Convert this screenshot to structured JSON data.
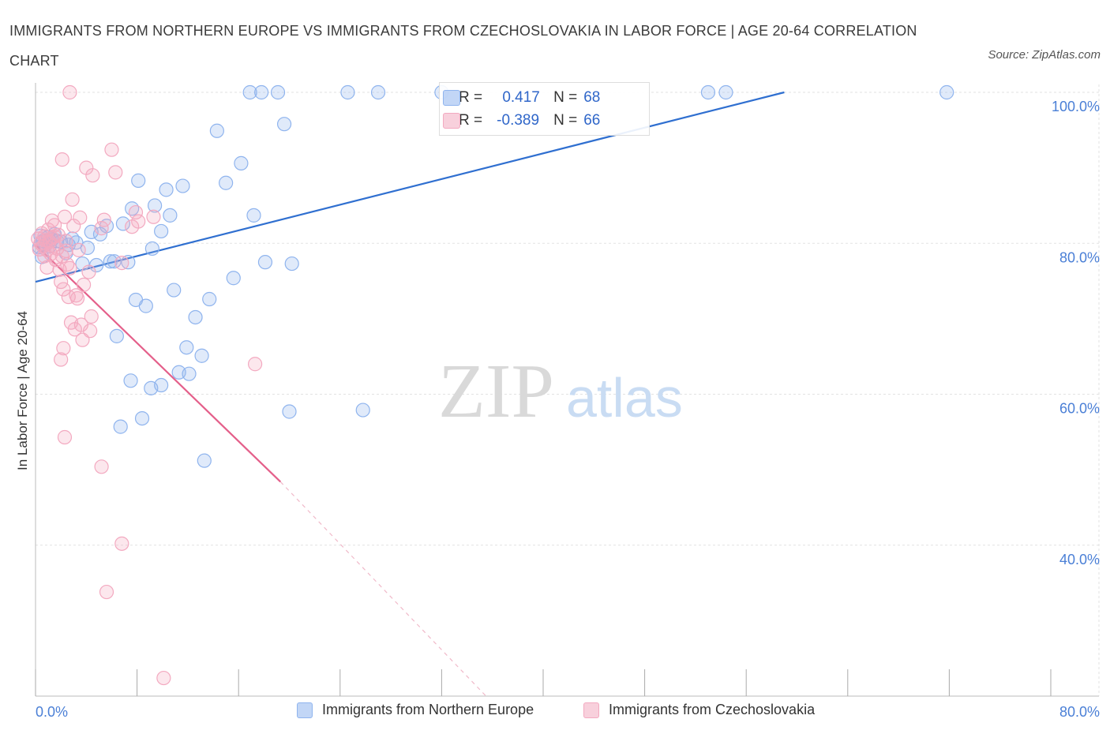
{
  "title": "IMMIGRANTS FROM NORTHERN EUROPE VS IMMIGRANTS FROM CZECHOSLOVAKIA IN LABOR FORCE | AGE 20-64 CORRELATION CHART",
  "source": "Source: ZipAtlas.com",
  "watermark": {
    "zip": "ZIP",
    "atlas": "atlas"
  },
  "stats": [
    {
      "r_label": "R =",
      "r_value": "0.417",
      "n_label": "N =",
      "n_value": "68",
      "color": "#8fb4ee"
    },
    {
      "r_label": "R =",
      "r_value": "-0.389",
      "n_label": "N =",
      "n_value": "66",
      "color": "#f3a9c0"
    }
  ],
  "legend": [
    {
      "label": "Immigrants from Northern Europe",
      "color": "#8fb4ee"
    },
    {
      "label": "Immigrants from Czechoslovakia",
      "color": "#f3a9c0"
    }
  ],
  "chart_data": {
    "type": "scatter",
    "title": "IMMIGRANTS FROM NORTHERN EUROPE VS IMMIGRANTS FROM CZECHOSLOVAKIA IN LABOR FORCE | AGE 20-64 CORRELATION CHART",
    "xlabel": "",
    "ylabel": "In Labor Force | Age 20-64",
    "xlim": [
      0,
      80
    ],
    "ylim": [
      20,
      100
    ],
    "x_tick_labels": [
      "0.0%",
      "80.0%"
    ],
    "y_tick_labels": [
      {
        "value": 100,
        "label": "100.0%"
      },
      {
        "value": 80,
        "label": "80.0%"
      },
      {
        "value": 60,
        "label": "60.0%"
      },
      {
        "value": 40,
        "label": "40.0%"
      }
    ],
    "series": [
      {
        "name": "Immigrants from Northern Europe",
        "color": "#8fb4ee",
        "trend": {
          "x0": 0,
          "y0": 74.9,
          "x1": 59,
          "y1": 100,
          "dashed_to": null
        },
        "points": [
          [
            0.3,
            79.5
          ],
          [
            0.4,
            81.0
          ],
          [
            0.6,
            80.3
          ],
          [
            0.5,
            78.2
          ],
          [
            0.8,
            79.8
          ],
          [
            1.0,
            80.8
          ],
          [
            1.3,
            80.5
          ],
          [
            1.5,
            81.2
          ],
          [
            1.1,
            79.6
          ],
          [
            1.7,
            80.3
          ],
          [
            2.0,
            80.2
          ],
          [
            2.6,
            79.8
          ],
          [
            2.4,
            78.7
          ],
          [
            2.9,
            80.6
          ],
          [
            3.2,
            80.1
          ],
          [
            3.7,
            77.3
          ],
          [
            4.1,
            79.4
          ],
          [
            4.4,
            81.5
          ],
          [
            4.8,
            77.1
          ],
          [
            5.1,
            81.2
          ],
          [
            5.6,
            82.3
          ],
          [
            5.9,
            77.6
          ],
          [
            6.2,
            77.6
          ],
          [
            6.9,
            82.6
          ],
          [
            7.3,
            77.5
          ],
          [
            7.6,
            84.6
          ],
          [
            7.9,
            72.5
          ],
          [
            8.1,
            88.3
          ],
          [
            8.7,
            71.7
          ],
          [
            9.2,
            79.3
          ],
          [
            9.4,
            85.0
          ],
          [
            9.9,
            81.6
          ],
          [
            10.3,
            87.1
          ],
          [
            10.6,
            83.7
          ],
          [
            11.6,
            87.6
          ],
          [
            11.9,
            66.2
          ],
          [
            12.1,
            62.7
          ],
          [
            12.6,
            70.2
          ],
          [
            13.3,
            51.2
          ],
          [
            13.7,
            72.6
          ],
          [
            14.3,
            94.9
          ],
          [
            15.0,
            88.0
          ],
          [
            15.6,
            75.4
          ],
          [
            16.2,
            90.6
          ],
          [
            16.9,
            100.0
          ],
          [
            17.2,
            83.7
          ],
          [
            17.8,
            100.0
          ],
          [
            18.1,
            77.5
          ],
          [
            19.1,
            100.0
          ],
          [
            19.6,
            95.8
          ],
          [
            20.0,
            57.7
          ],
          [
            20.2,
            77.3
          ],
          [
            24.6,
            100.0
          ],
          [
            25.8,
            57.9
          ],
          [
            27.0,
            100.0
          ],
          [
            32.0,
            100.0
          ],
          [
            53.0,
            100.0
          ],
          [
            54.4,
            100.0
          ],
          [
            71.8,
            100.0
          ],
          [
            7.5,
            61.8
          ],
          [
            9.1,
            60.8
          ],
          [
            8.4,
            56.8
          ],
          [
            6.7,
            55.7
          ],
          [
            9.9,
            61.2
          ],
          [
            10.9,
            73.8
          ],
          [
            11.3,
            62.9
          ],
          [
            13.1,
            65.1
          ],
          [
            6.4,
            67.7
          ]
        ]
      },
      {
        "name": "Immigrants from Czechoslovakia",
        "color": "#f3a9c0",
        "trend": {
          "x0": 0,
          "y0": 79.8,
          "x1": 19.3,
          "y1": 48.4,
          "dashed_to": {
            "x": 35.5,
            "y": 20.0
          }
        },
        "points": [
          [
            0.2,
            80.6
          ],
          [
            0.3,
            79.2
          ],
          [
            0.4,
            80.0
          ],
          [
            0.5,
            81.3
          ],
          [
            0.6,
            79.6
          ],
          [
            0.7,
            80.9
          ],
          [
            0.8,
            80.4
          ],
          [
            0.9,
            79.1
          ],
          [
            1.0,
            81.8
          ],
          [
            1.1,
            80.2
          ],
          [
            1.2,
            78.6
          ],
          [
            1.3,
            80.7
          ],
          [
            1.4,
            79.7
          ],
          [
            1.5,
            82.4
          ],
          [
            1.6,
            77.8
          ],
          [
            1.7,
            79.3
          ],
          [
            1.8,
            81.1
          ],
          [
            1.9,
            76.5
          ],
          [
            2.0,
            74.9
          ],
          [
            2.1,
            78.3
          ],
          [
            2.2,
            73.9
          ],
          [
            2.3,
            83.5
          ],
          [
            2.4,
            80.3
          ],
          [
            2.5,
            77.2
          ],
          [
            2.6,
            72.9
          ],
          [
            2.7,
            76.7
          ],
          [
            2.8,
            69.5
          ],
          [
            2.9,
            85.8
          ],
          [
            3.0,
            82.3
          ],
          [
            3.1,
            68.6
          ],
          [
            3.2,
            73.1
          ],
          [
            3.3,
            72.7
          ],
          [
            3.4,
            79.1
          ],
          [
            3.5,
            83.4
          ],
          [
            3.6,
            69.2
          ],
          [
            3.7,
            67.2
          ],
          [
            3.8,
            74.5
          ],
          [
            4.0,
            90.0
          ],
          [
            4.2,
            76.2
          ],
          [
            4.5,
            89.0
          ],
          [
            4.4,
            70.3
          ],
          [
            4.3,
            68.4
          ],
          [
            5.2,
            82.0
          ],
          [
            5.4,
            83.1
          ],
          [
            6.0,
            92.4
          ],
          [
            6.3,
            89.4
          ],
          [
            6.8,
            77.4
          ],
          [
            7.9,
            84.1
          ],
          [
            7.6,
            82.2
          ],
          [
            8.1,
            82.9
          ],
          [
            9.3,
            83.5
          ],
          [
            2.7,
            100.0
          ],
          [
            2.1,
            91.1
          ],
          [
            2.0,
            64.6
          ],
          [
            2.2,
            66.1
          ],
          [
            2.3,
            54.3
          ],
          [
            5.2,
            50.4
          ],
          [
            6.8,
            40.2
          ],
          [
            5.6,
            33.8
          ],
          [
            10.1,
            22.4
          ],
          [
            17.3,
            64.0
          ],
          [
            1.3,
            83.0
          ],
          [
            0.9,
            76.8
          ],
          [
            2.4,
            79.0
          ],
          [
            1.5,
            80.9
          ],
          [
            0.7,
            78.3
          ]
        ]
      }
    ],
    "grid": true,
    "legend_position": "bottom"
  }
}
